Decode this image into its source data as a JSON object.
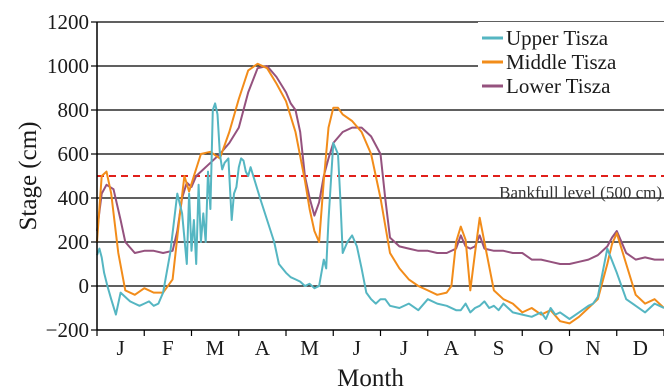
{
  "chart_data": {
    "type": "line",
    "title": "",
    "xlabel": "Month",
    "ylabel": "Stage (cm)",
    "ylim": [
      -200,
      1200
    ],
    "yticks": [
      -200,
      0,
      200,
      400,
      600,
      800,
      1000,
      1200
    ],
    "ytick_labels": [
      "−200",
      "0",
      "200",
      "400",
      "600",
      "800",
      "1000",
      "1200"
    ],
    "xlim": [
      0,
      12
    ],
    "months": [
      "J",
      "F",
      "M",
      "A",
      "M",
      "J",
      "J",
      "A",
      "S",
      "O",
      "N",
      "D"
    ],
    "grid": "horizontal",
    "legend_position": "top-right",
    "reference_line": {
      "value": 500,
      "label": "Bankfull level (500 cm)",
      "color": "#e0201b"
    },
    "series": [
      {
        "name": "Upper Tisza",
        "color": "#55b6c2",
        "x": [
          0.0,
          0.05,
          0.1,
          0.15,
          0.22,
          0.3,
          0.4,
          0.5,
          0.6,
          0.7,
          0.8,
          0.9,
          1.0,
          1.1,
          1.2,
          1.3,
          1.4,
          1.55,
          1.7,
          1.8,
          1.9,
          1.95,
          2.0,
          2.05,
          2.1,
          2.15,
          2.2,
          2.25,
          2.3,
          2.35,
          2.4,
          2.45,
          2.5,
          2.55,
          2.6,
          2.65,
          2.7,
          2.78,
          2.85,
          2.9,
          2.95,
          3.0,
          3.05,
          3.1,
          3.15,
          3.2,
          3.25,
          3.35,
          3.45,
          3.6,
          3.75,
          3.85,
          4.0,
          4.1,
          4.2,
          4.3,
          4.4,
          4.5,
          4.6,
          4.7,
          4.8,
          4.85,
          4.9,
          5.0,
          5.1,
          5.15,
          5.2,
          5.3,
          5.4,
          5.5,
          5.6,
          5.7,
          5.8,
          5.9,
          6.0,
          6.1,
          6.2,
          6.4,
          6.6,
          6.8,
          7.0,
          7.2,
          7.4,
          7.6,
          7.7,
          7.8,
          7.9,
          8.0,
          8.1,
          8.2,
          8.3,
          8.4,
          8.5,
          8.6,
          8.8,
          9.0,
          9.2,
          9.4,
          9.5,
          9.6,
          9.7,
          9.8,
          10.0,
          10.2,
          10.4,
          10.5,
          10.6,
          10.8,
          11.0,
          11.2,
          11.4,
          11.6,
          11.8,
          12.0
        ],
        "y": [
          140,
          170,
          130,
          60,
          0,
          -60,
          -130,
          -30,
          -50,
          -70,
          -80,
          -90,
          -80,
          -70,
          -90,
          -80,
          -30,
          150,
          420,
          330,
          100,
          420,
          160,
          300,
          100,
          460,
          200,
          330,
          200,
          520,
          350,
          800,
          830,
          780,
          600,
          530,
          560,
          580,
          300,
          420,
          450,
          540,
          580,
          570,
          520,
          500,
          540,
          470,
          400,
          300,
          200,
          100,
          60,
          40,
          30,
          20,
          0,
          10,
          -10,
          0,
          120,
          80,
          300,
          650,
          600,
          400,
          150,
          200,
          230,
          180,
          80,
          -30,
          -60,
          -80,
          -60,
          -60,
          -90,
          -100,
          -80,
          -110,
          -60,
          -80,
          -90,
          -110,
          -110,
          -80,
          -120,
          -100,
          -90,
          -70,
          -100,
          -90,
          -110,
          -80,
          -120,
          -130,
          -140,
          -120,
          -150,
          -100,
          -130,
          -120,
          -150,
          -120,
          -90,
          -80,
          -50,
          170,
          60,
          -60,
          -90,
          -120,
          -80,
          -100
        ],
        "values": [
          140,
          170,
          130,
          60,
          0,
          -60,
          -130,
          -30,
          -50,
          -70,
          -80,
          -90,
          -80,
          -70,
          -90,
          -80,
          -30,
          150,
          420,
          330,
          100,
          420,
          160,
          300,
          100,
          460,
          200,
          330,
          200,
          520,
          350,
          800,
          830,
          780,
          600,
          530,
          560,
          580,
          300,
          420,
          450,
          540,
          580,
          570,
          520,
          500,
          540,
          470,
          400,
          300,
          200,
          100,
          60,
          40,
          30,
          20,
          0,
          10,
          -10,
          0,
          120,
          80,
          300,
          650,
          600,
          400,
          150,
          200,
          230,
          180,
          80,
          -30,
          -60,
          -80,
          -60,
          -60,
          -90,
          -100,
          -80,
          -110,
          -60,
          -80,
          -90,
          -110,
          -110,
          -80,
          -120,
          -100,
          -90,
          -70,
          -100,
          -90,
          -110,
          -80,
          -120,
          -130,
          -140,
          -120,
          -150,
          -100,
          -130,
          -120,
          -150,
          -120,
          -90,
          -80,
          -50,
          170,
          60,
          -60,
          -90,
          -120,
          -80,
          -100
        ]
      },
      {
        "name": "Middle Tisza",
        "color": "#f28c1a",
        "x": [
          0.0,
          0.1,
          0.2,
          0.3,
          0.45,
          0.6,
          0.8,
          1.0,
          1.2,
          1.4,
          1.6,
          1.75,
          1.85,
          1.95,
          2.05,
          2.2,
          2.4,
          2.6,
          2.8,
          3.0,
          3.2,
          3.4,
          3.6,
          3.8,
          4.0,
          4.2,
          4.3,
          4.4,
          4.5,
          4.6,
          4.7,
          4.8,
          4.9,
          5.0,
          5.1,
          5.2,
          5.4,
          5.6,
          5.8,
          6.0,
          6.2,
          6.4,
          6.6,
          6.8,
          7.0,
          7.2,
          7.4,
          7.5,
          7.6,
          7.7,
          7.8,
          7.9,
          8.0,
          8.1,
          8.2,
          8.4,
          8.6,
          8.8,
          9.0,
          9.2,
          9.4,
          9.6,
          9.8,
          10.0,
          10.2,
          10.4,
          10.6,
          10.8,
          10.9,
          11.0,
          11.2,
          11.4,
          11.6,
          11.8,
          12.0
        ],
        "y": [
          200,
          500,
          520,
          420,
          150,
          -20,
          -40,
          -10,
          -30,
          -30,
          30,
          320,
          500,
          430,
          500,
          600,
          610,
          580,
          700,
          850,
          980,
          1010,
          990,
          920,
          840,
          700,
          590,
          480,
          350,
          250,
          200,
          480,
          720,
          810,
          810,
          780,
          750,
          700,
          600,
          400,
          150,
          80,
          30,
          0,
          -20,
          -40,
          -30,
          0,
          200,
          270,
          210,
          -20,
          150,
          310,
          200,
          -20,
          -60,
          -80,
          -120,
          -100,
          -130,
          -110,
          -160,
          -170,
          -140,
          -100,
          -60,
          100,
          190,
          240,
          100,
          -40,
          -80,
          -60,
          -100
        ],
        "values": [
          200,
          500,
          520,
          420,
          150,
          -20,
          -40,
          -10,
          -30,
          -30,
          30,
          320,
          500,
          430,
          500,
          600,
          610,
          580,
          700,
          850,
          980,
          1010,
          990,
          920,
          840,
          700,
          590,
          480,
          350,
          250,
          200,
          480,
          720,
          810,
          810,
          780,
          750,
          700,
          600,
          400,
          150,
          80,
          30,
          0,
          -20,
          -40,
          -30,
          0,
          200,
          270,
          210,
          -20,
          150,
          310,
          200,
          -20,
          -60,
          -80,
          -120,
          -100,
          -130,
          -110,
          -160,
          -170,
          -140,
          -100,
          -60,
          100,
          190,
          240,
          100,
          -40,
          -80,
          -60,
          -100
        ]
      },
      {
        "name": "Lower Tisza",
        "color": "#95527e",
        "x": [
          0.0,
          0.1,
          0.2,
          0.35,
          0.5,
          0.6,
          0.8,
          1.0,
          1.2,
          1.4,
          1.6,
          1.7,
          1.8,
          1.9,
          2.0,
          2.1,
          2.2,
          2.4,
          2.6,
          2.8,
          3.0,
          3.2,
          3.4,
          3.6,
          3.8,
          4.0,
          4.1,
          4.2,
          4.3,
          4.4,
          4.5,
          4.6,
          4.7,
          4.8,
          4.9,
          5.0,
          5.2,
          5.4,
          5.6,
          5.8,
          6.0,
          6.1,
          6.2,
          6.4,
          6.6,
          6.8,
          7.0,
          7.2,
          7.4,
          7.6,
          7.7,
          7.8,
          7.9,
          8.0,
          8.1,
          8.2,
          8.4,
          8.6,
          8.8,
          9.0,
          9.2,
          9.4,
          9.6,
          9.8,
          10.0,
          10.2,
          10.4,
          10.6,
          10.8,
          10.9,
          11.0,
          11.2,
          11.4,
          11.6,
          11.8,
          12.0
        ],
        "y": [
          250,
          420,
          460,
          440,
          300,
          200,
          150,
          160,
          160,
          150,
          160,
          250,
          400,
          470,
          450,
          500,
          520,
          560,
          600,
          650,
          720,
          880,
          990,
          1000,
          950,
          880,
          830,
          800,
          700,
          500,
          400,
          320,
          380,
          500,
          580,
          650,
          700,
          720,
          720,
          680,
          600,
          400,
          220,
          180,
          170,
          160,
          160,
          150,
          150,
          170,
          230,
          180,
          170,
          180,
          230,
          170,
          160,
          160,
          150,
          150,
          120,
          120,
          110,
          100,
          100,
          110,
          120,
          140,
          180,
          220,
          250,
          150,
          120,
          130,
          120,
          120
        ],
        "values": [
          250,
          420,
          460,
          440,
          300,
          200,
          150,
          160,
          160,
          150,
          160,
          250,
          400,
          470,
          450,
          500,
          520,
          560,
          600,
          650,
          720,
          880,
          990,
          1000,
          950,
          880,
          830,
          800,
          700,
          500,
          400,
          320,
          380,
          500,
          580,
          650,
          700,
          720,
          720,
          680,
          600,
          400,
          220,
          180,
          170,
          160,
          160,
          150,
          150,
          170,
          230,
          180,
          170,
          180,
          230,
          170,
          160,
          160,
          150,
          150,
          120,
          120,
          110,
          100,
          100,
          110,
          120,
          140,
          180,
          220,
          250,
          150,
          120,
          130,
          120,
          120
        ]
      }
    ]
  }
}
